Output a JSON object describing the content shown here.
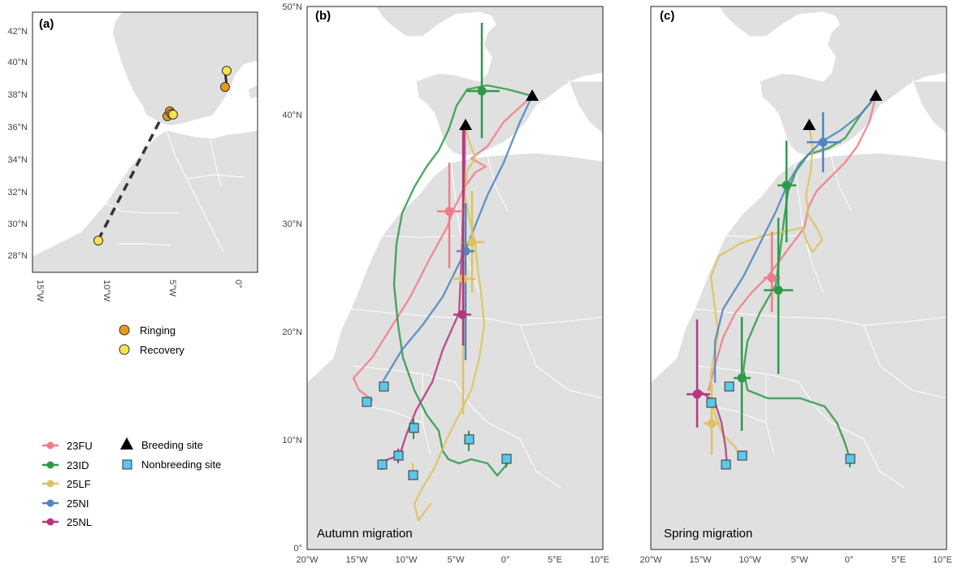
{
  "panels": {
    "a": {
      "label": "(a)",
      "yticks": [
        "42°N",
        "40°N",
        "38°N",
        "36°N",
        "34°N",
        "32°N",
        "30°N",
        "28°N"
      ],
      "xticks": [
        "15°W",
        "10°W",
        "5°W",
        "0°"
      ]
    },
    "b": {
      "label": "(b)",
      "caption": "Autumn migration",
      "yticks": [
        "50°N",
        "40°N",
        "30°N",
        "20°N",
        "10°N",
        "0°"
      ],
      "xticks": [
        "20°W",
        "15°W",
        "10°W",
        "5°W",
        "0°",
        "5°E",
        "10°E"
      ]
    },
    "c": {
      "label": "(c)",
      "caption": "Spring migration",
      "xticks": [
        "20°W",
        "15°W",
        "10°W",
        "5°W",
        "0°",
        "5°E",
        "10°E"
      ]
    }
  },
  "legend_ring": {
    "ringing": "Ringing",
    "recovery": "Recovery"
  },
  "legend_individuals": [
    {
      "id": "23FU",
      "color": "#f07c8a"
    },
    {
      "id": "23ID",
      "color": "#2e9a48"
    },
    {
      "id": "25LF",
      "color": "#dcc35c"
    },
    {
      "id": "25NI",
      "color": "#4f85c1"
    },
    {
      "id": "25NL",
      "color": "#b4377e"
    }
  ],
  "legend_sites": {
    "breeding": "Breeding site",
    "nonbreeding": "Nonbreeding site"
  },
  "colors": {
    "land": "#e0e0e0",
    "ringing": "#e89b1a",
    "recovery": "#f7e44b",
    "nonbreeding": "#5bc8ea"
  }
}
